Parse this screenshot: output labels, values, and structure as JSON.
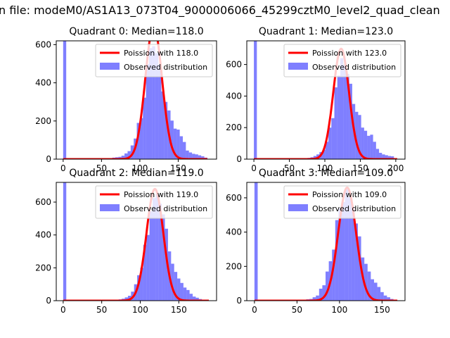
{
  "figure": {
    "suptitle": "n file: modeM0/AS1A13_073T04_9000006066_45299cztM0_level2_quad_clean"
  },
  "colors": {
    "observed_fill": "#0000ff",
    "observed_alpha": 0.5,
    "fit_line": "#ff0000"
  },
  "chart_data": [
    {
      "type": "bar",
      "quadrant": 0,
      "title": "Quadrant 0: Median=118.0",
      "median": 118.0,
      "xlim": [
        -9,
        200
      ],
      "ylim": [
        0,
        620
      ],
      "xticks": [
        0,
        50,
        100,
        150
      ],
      "xtick_labels": [
        "0",
        "50",
        "100",
        "150"
      ],
      "yticks": [
        0,
        200,
        400,
        600
      ],
      "ytick_labels": [
        "0",
        "200",
        "400",
        "600"
      ],
      "legend": [
        "Poission with 118.0",
        "Observed distribution"
      ],
      "legend_location": "upper right",
      "bin_width": 4,
      "hist_x": [
        0,
        64,
        68,
        72,
        76,
        80,
        84,
        88,
        92,
        96,
        100,
        104,
        108,
        112,
        116,
        120,
        124,
        128,
        132,
        136,
        140,
        144,
        148,
        152,
        156,
        160,
        164,
        168,
        172,
        176,
        180,
        184
      ],
      "hist_y": [
        1000,
        8,
        10,
        12,
        18,
        30,
        42,
        72,
        108,
        190,
        215,
        322,
        498,
        582,
        592,
        555,
        498,
        355,
        300,
        255,
        202,
        160,
        155,
        120,
        90,
        45,
        35,
        28,
        25,
        20,
        15,
        8
      ],
      "fit_lambda": 118.0,
      "fit_peak": 700,
      "fit_xrange": [
        0,
        188
      ]
    },
    {
      "type": "bar",
      "quadrant": 1,
      "title": "Quadrant 1: Median=123.0",
      "median": 123.0,
      "xlim": [
        -10,
        213
      ],
      "ylim": [
        0,
        750
      ],
      "xticks": [
        0,
        50,
        100,
        150,
        200
      ],
      "xtick_labels": [
        "0",
        "50",
        "100",
        "150",
        "200"
      ],
      "yticks": [
        0,
        200,
        400,
        600
      ],
      "ytick_labels": [
        "0",
        "200",
        "400",
        "600"
      ],
      "legend": [
        "Poission with 123.0",
        "Observed distribution"
      ],
      "legend_location": "upper right",
      "bin_width": 4.2,
      "hist_x": [
        0,
        71.4,
        75.6,
        79.8,
        84,
        88.2,
        92.4,
        96.6,
        100.8,
        105,
        109.2,
        113.4,
        117.6,
        121.8,
        126,
        130.2,
        134.4,
        138.6,
        142.8,
        147,
        151.2,
        155.4,
        159.6,
        163.8,
        168,
        172.2,
        176.4,
        180.6,
        184.8,
        189,
        193.2
      ],
      "hist_y": [
        1000,
        5,
        8,
        12,
        20,
        30,
        45,
        60,
        110,
        200,
        260,
        455,
        530,
        640,
        600,
        540,
        478,
        350,
        300,
        280,
        200,
        180,
        148,
        155,
        110,
        65,
        40,
        30,
        25,
        20,
        18
      ],
      "fit_lambda": 123.0,
      "fit_peak": 700,
      "fit_xrange": [
        0,
        202
      ]
    },
    {
      "type": "bar",
      "quadrant": 2,
      "title": "Quadrant 2: Median=119.0",
      "median": 119.0,
      "xlim": [
        -9,
        199
      ],
      "ylim": [
        0,
        720
      ],
      "xticks": [
        0,
        50,
        100,
        150
      ],
      "xtick_labels": [
        "0",
        "50",
        "100",
        "150"
      ],
      "yticks": [
        0,
        200,
        400,
        600
      ],
      "ytick_labels": [
        "0",
        "200",
        "400",
        "600"
      ],
      "legend": [
        "Poission with 119.0",
        "Observed distribution"
      ],
      "legend_location": "upper right",
      "bin_width": 4,
      "hist_x": [
        0,
        72,
        76,
        80,
        84,
        88,
        92,
        96,
        100,
        104,
        108,
        112,
        116,
        120,
        124,
        128,
        132,
        136,
        140,
        144,
        148,
        152,
        156,
        160,
        164,
        168,
        172,
        176,
        180
      ],
      "hist_y": [
        1000,
        8,
        12,
        20,
        30,
        55,
        100,
        155,
        200,
        340,
        400,
        545,
        625,
        650,
        590,
        525,
        438,
        300,
        225,
        175,
        135,
        108,
        80,
        65,
        42,
        25,
        18,
        10,
        6
      ],
      "fit_lambda": 119.0,
      "fit_peak": 680,
      "fit_xrange": [
        0,
        189
      ]
    },
    {
      "type": "bar",
      "quadrant": 3,
      "title": "Quadrant 3: Median=109.0",
      "median": 109.0,
      "xlim": [
        -9,
        177
      ],
      "ylim": [
        0,
        690
      ],
      "xticks": [
        0,
        50,
        100,
        150
      ],
      "xtick_labels": [
        "0",
        "50",
        "100",
        "150"
      ],
      "yticks": [
        0,
        200,
        400,
        600
      ],
      "ytick_labels": [
        "0",
        "200",
        "400",
        "600"
      ],
      "legend": [
        "Poission with 109.0",
        "Observed distribution"
      ],
      "legend_location": "upper right",
      "bin_width": 3.8,
      "hist_x": [
        0,
        60.8,
        64.6,
        68.4,
        72.2,
        76,
        79.8,
        83.6,
        87.4,
        91.2,
        95,
        98.8,
        102.6,
        106.4,
        110.2,
        114,
        117.8,
        121.6,
        125.4,
        129.2,
        133,
        136.8,
        140.6,
        144.4,
        148.2,
        152,
        155.8,
        159.6
      ],
      "hist_y": [
        1000,
        8,
        10,
        20,
        30,
        70,
        90,
        170,
        230,
        298,
        470,
        538,
        575,
        650,
        605,
        540,
        450,
        375,
        252,
        215,
        170,
        125,
        105,
        80,
        50,
        30,
        20,
        10
      ],
      "fit_lambda": 109.0,
      "fit_peak": 660,
      "fit_xrange": [
        0,
        168
      ]
    }
  ]
}
